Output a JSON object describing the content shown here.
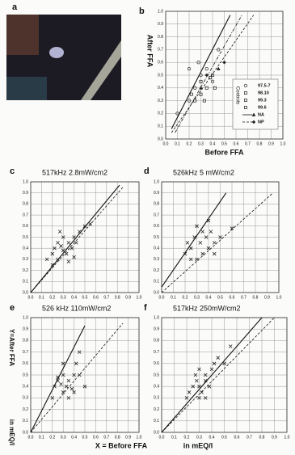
{
  "image_panel": "a",
  "x_label": "X = Before FFA",
  "x_unit": "in mEQ/l",
  "y_label": "Y=After FFA",
  "y_unit": "in mEQ/l",
  "chart_data": [
    {
      "type": "scatter",
      "panel": "b",
      "xlabel": "Before FFA",
      "ylabel": "After FFA",
      "legend_title": "Controls",
      "grid": true,
      "xlim": [
        0,
        1
      ],
      "ylim": [
        0,
        1
      ],
      "xticks": [
        {
          "value": 0,
          "label": "0.0"
        },
        0.1,
        0.2,
        0.3,
        0.4,
        0.5,
        0.6,
        0.7,
        0.8,
        0.9,
        {
          "value": 1,
          "label": "1.0"
        }
      ],
      "yticks": [
        {
          "value": 0,
          "label": "0.0"
        },
        0.1,
        0.2,
        0.3,
        0.4,
        0.5,
        0.6,
        0.7,
        0.8,
        0.9,
        {
          "value": 1,
          "label": "1.0"
        }
      ],
      "series": [
        {
          "name": "97.5-7",
          "marker": "o",
          "color": "#222",
          "x": [
            0.1,
            0.2,
            0.25,
            0.3,
            0.35,
            0.4,
            0.2,
            0.28,
            0.45
          ],
          "values": [
            0.2,
            0.3,
            0.4,
            0.5,
            0.55,
            0.45,
            0.55,
            0.6,
            0.7
          ]
        },
        {
          "name": "98.10",
          "marker": "s",
          "color": "#222",
          "x": [
            0.3,
            0.35,
            0.4
          ],
          "values": [
            0.35,
            0.4,
            0.5
          ]
        },
        {
          "name": "99.3",
          "marker": "s",
          "color": "#222",
          "x": [
            0.25,
            0.3,
            0.38
          ],
          "values": [
            0.3,
            0.45,
            0.48
          ]
        },
        {
          "name": "99.6",
          "marker": "s",
          "color": "#222",
          "x": [
            0.22,
            0.33,
            0.42
          ],
          "values": [
            0.35,
            0.3,
            0.4
          ]
        },
        {
          "name": "NA",
          "marker": "^",
          "color": "#222",
          "line": "solid",
          "x": [
            0.3,
            0.45
          ],
          "values": [
            0.4,
            0.55
          ]
        },
        {
          "name": "NP",
          "marker": "d",
          "color": "#222",
          "line": "dashed",
          "x": [
            0.35,
            0.5
          ],
          "values": [
            0.5,
            0.6
          ]
        }
      ],
      "lines": [
        {
          "style": "solid",
          "x": [
            0.05,
            0.55
          ],
          "y": [
            0.08,
            0.97
          ]
        },
        {
          "style": "dashed",
          "x": [
            0.05,
            0.75
          ],
          "y": [
            0.05,
            0.97
          ]
        },
        {
          "style": "dashdot",
          "x": [
            0.08,
            0.65
          ],
          "y": [
            0.05,
            0.97
          ]
        }
      ]
    },
    {
      "type": "scatter",
      "panel": "c",
      "title": "517kHz 2.8mW/cm2",
      "grid": true,
      "xlim": [
        0,
        1
      ],
      "ylim": [
        0,
        1
      ],
      "xticks": [
        {
          "value": 0,
          "label": "0.0"
        },
        0.1,
        0.2,
        0.3,
        0.4,
        0.5,
        0.6,
        0.7,
        0.8,
        0.9,
        {
          "value": 1,
          "label": "1.0"
        }
      ],
      "yticks": [
        {
          "value": 0,
          "label": "0.0"
        },
        0.1,
        0.2,
        0.3,
        0.4,
        0.5,
        0.6,
        0.7,
        0.8,
        0.9,
        {
          "value": 1,
          "label": "1.0"
        }
      ],
      "series": [
        {
          "marker": "x",
          "color": "#222",
          "x": [
            0.15,
            0.2,
            0.22,
            0.25,
            0.25,
            0.28,
            0.3,
            0.3,
            0.33,
            0.35,
            0.35,
            0.38,
            0.4,
            0.4,
            0.42,
            0.45,
            0.5,
            0.55,
            0.2,
            0.27
          ],
          "values": [
            0.3,
            0.35,
            0.4,
            0.45,
            0.3,
            0.42,
            0.38,
            0.5,
            0.35,
            0.45,
            0.28,
            0.4,
            0.32,
            0.5,
            0.45,
            0.55,
            0.6,
            0.62,
            0.25,
            0.55
          ]
        }
      ],
      "lines": [
        {
          "style": "solid",
          "x": [
            0,
            0.82
          ],
          "y": [
            0,
            0.97
          ]
        },
        {
          "style": "dashed",
          "x": [
            0,
            0.85
          ],
          "y": [
            0,
            0.95
          ]
        }
      ]
    },
    {
      "type": "scatter",
      "panel": "d",
      "title": "526kHz 5 mW/cm2",
      "grid": true,
      "xlim": [
        0,
        1
      ],
      "ylim": [
        0,
        1
      ],
      "xticks": [
        {
          "value": 0,
          "label": "0.0"
        },
        0.1,
        0.2,
        0.3,
        0.4,
        0.5,
        0.6,
        0.7,
        0.8,
        0.9,
        {
          "value": 1,
          "label": "1.0"
        }
      ],
      "yticks": [
        {
          "value": 0,
          "label": "0.0"
        },
        0.1,
        0.2,
        0.3,
        0.4,
        0.5,
        0.6,
        0.7,
        0.8,
        0.9,
        {
          "value": 1,
          "label": "1.0"
        }
      ],
      "series": [
        {
          "marker": "x",
          "color": "#222",
          "x": [
            0.2,
            0.22,
            0.25,
            0.28,
            0.3,
            0.3,
            0.33,
            0.35,
            0.35,
            0.38,
            0.4,
            0.4,
            0.42,
            0.45,
            0.45,
            0.5,
            0.25,
            0.6
          ],
          "values": [
            0.35,
            0.45,
            0.4,
            0.5,
            0.6,
            0.3,
            0.45,
            0.55,
            0.35,
            0.5,
            0.4,
            0.65,
            0.55,
            0.45,
            0.35,
            0.5,
            0.3,
            0.58
          ]
        }
      ],
      "lines": [
        {
          "style": "solid",
          "x": [
            0,
            0.55
          ],
          "y": [
            0.05,
            0.9
          ]
        },
        {
          "style": "dashed",
          "x": [
            0,
            0.95
          ],
          "y": [
            0,
            0.9
          ]
        }
      ]
    },
    {
      "type": "scatter",
      "panel": "e",
      "title": "526 kHz 110mW/cm2",
      "grid": true,
      "xlim": [
        0,
        1
      ],
      "ylim": [
        0,
        1
      ],
      "xticks": [
        {
          "value": 0,
          "label": "0.0"
        },
        0.1,
        0.2,
        0.3,
        0.4,
        0.5,
        0.6,
        0.7,
        0.8,
        0.9,
        {
          "value": 1,
          "label": "1.0"
        }
      ],
      "yticks": [
        {
          "value": 0,
          "label": "0.0"
        },
        0.1,
        0.2,
        0.3,
        0.4,
        0.5,
        0.6,
        0.7,
        0.8,
        0.9,
        {
          "value": 1,
          "label": "1.0"
        }
      ],
      "series": [
        {
          "marker": "x",
          "color": "#222",
          "x": [
            0.2,
            0.22,
            0.25,
            0.25,
            0.28,
            0.3,
            0.3,
            0.33,
            0.35,
            0.35,
            0.38,
            0.4,
            0.4,
            0.42,
            0.45,
            0.45,
            0.5,
            0.3
          ],
          "values": [
            0.3,
            0.4,
            0.45,
            0.48,
            0.42,
            0.35,
            0.5,
            0.4,
            0.45,
            0.3,
            0.38,
            0.5,
            0.35,
            0.6,
            0.7,
            0.5,
            0.4,
            0.6
          ]
        }
      ],
      "lines": [
        {
          "style": "solid",
          "x": [
            0,
            0.5
          ],
          "y": [
            0,
            0.93
          ]
        },
        {
          "style": "dashed",
          "x": [
            0,
            0.85
          ],
          "y": [
            0,
            0.95
          ]
        }
      ]
    },
    {
      "type": "scatter",
      "panel": "f",
      "title": "517kHz 250mW/cm2",
      "grid": true,
      "xlim": [
        0,
        1
      ],
      "ylim": [
        0,
        1
      ],
      "xticks": [
        {
          "value": 0,
          "label": "0.0"
        },
        0.1,
        0.2,
        0.3,
        0.4,
        0.5,
        0.6,
        0.7,
        0.8,
        0.9,
        {
          "value": 1,
          "label": "1.0"
        }
      ],
      "yticks": [
        {
          "value": 0,
          "label": "0.0"
        },
        0.1,
        0.2,
        0.3,
        0.4,
        0.5,
        0.6,
        0.7,
        0.8,
        0.9,
        {
          "value": 1,
          "label": "1.0"
        }
      ],
      "series": [
        {
          "marker": "x",
          "color": "#222",
          "x": [
            0.2,
            0.22,
            0.25,
            0.27,
            0.28,
            0.3,
            0.3,
            0.32,
            0.35,
            0.35,
            0.38,
            0.4,
            0.42,
            0.45,
            0.5,
            0.55,
            0.3,
            0.35
          ],
          "values": [
            0.3,
            0.35,
            0.4,
            0.5,
            0.45,
            0.4,
            0.55,
            0.35,
            0.45,
            0.5,
            0.4,
            0.55,
            0.6,
            0.65,
            0.6,
            0.75,
            0.3,
            0.3
          ]
        }
      ],
      "lines": [
        {
          "style": "solid",
          "x": [
            0,
            0.8
          ],
          "y": [
            0,
            1
          ]
        },
        {
          "style": "dashed",
          "x": [
            0,
            0.9
          ],
          "y": [
            0,
            1
          ]
        }
      ]
    }
  ]
}
